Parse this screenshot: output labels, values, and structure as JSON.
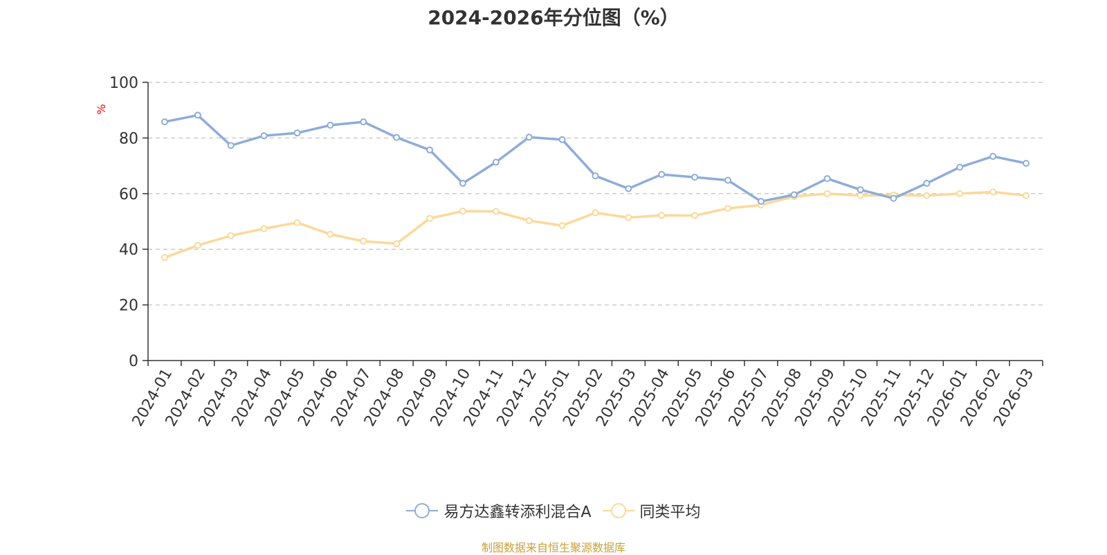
{
  "colors": {
    "series_a": "#8eacd9",
    "series_b": "#fcd899",
    "axis": "#333333",
    "grid": "#cccccc",
    "unit": "#ff0000"
  },
  "legend_icon": "circle-line-icon",
  "chart_data": {
    "type": "line",
    "title": "2024-2026年分位图（%）",
    "ylabel": "%",
    "xlabel": "",
    "ylim": [
      0,
      100
    ],
    "yticks": [
      0,
      20,
      40,
      60,
      80,
      100
    ],
    "grid": true,
    "legend_position": "bottom",
    "categories": [
      "2024-01",
      "2024-02",
      "2024-03",
      "2024-04",
      "2024-05",
      "2024-06",
      "2024-07",
      "2024-08",
      "2024-09",
      "2024-10",
      "2024-11",
      "2024-12",
      "2025-01",
      "2025-02",
      "2025-03",
      "2025-04",
      "2025-05",
      "2025-06",
      "2025-07",
      "2025-08",
      "2025-09",
      "2025-10",
      "2025-11",
      "2025-12",
      "2026-01",
      "2026-02",
      "2026-03"
    ],
    "series": [
      {
        "name": "易方达鑫转添利混合A",
        "values": [
          85.8,
          88.2,
          77.3,
          80.8,
          81.8,
          84.6,
          85.8,
          80.2,
          75.7,
          63.7,
          71.3,
          80.3,
          79.4,
          66.4,
          61.8,
          66.9,
          65.9,
          64.8,
          57.2,
          59.6,
          65.4,
          61.4,
          58.3,
          63.7,
          69.5,
          73.4,
          70.9
        ]
      },
      {
        "name": "同类平均",
        "values": [
          37.0,
          41.4,
          44.9,
          47.4,
          49.6,
          45.4,
          42.9,
          42.0,
          51.1,
          53.7,
          53.6,
          50.3,
          48.5,
          53.1,
          51.4,
          52.2,
          52.1,
          54.7,
          55.9,
          59.0,
          60.0,
          59.3,
          59.5,
          59.3,
          60.0,
          60.6,
          59.3
        ]
      }
    ]
  },
  "source_note": "制图数据来自恒生聚源数据库"
}
